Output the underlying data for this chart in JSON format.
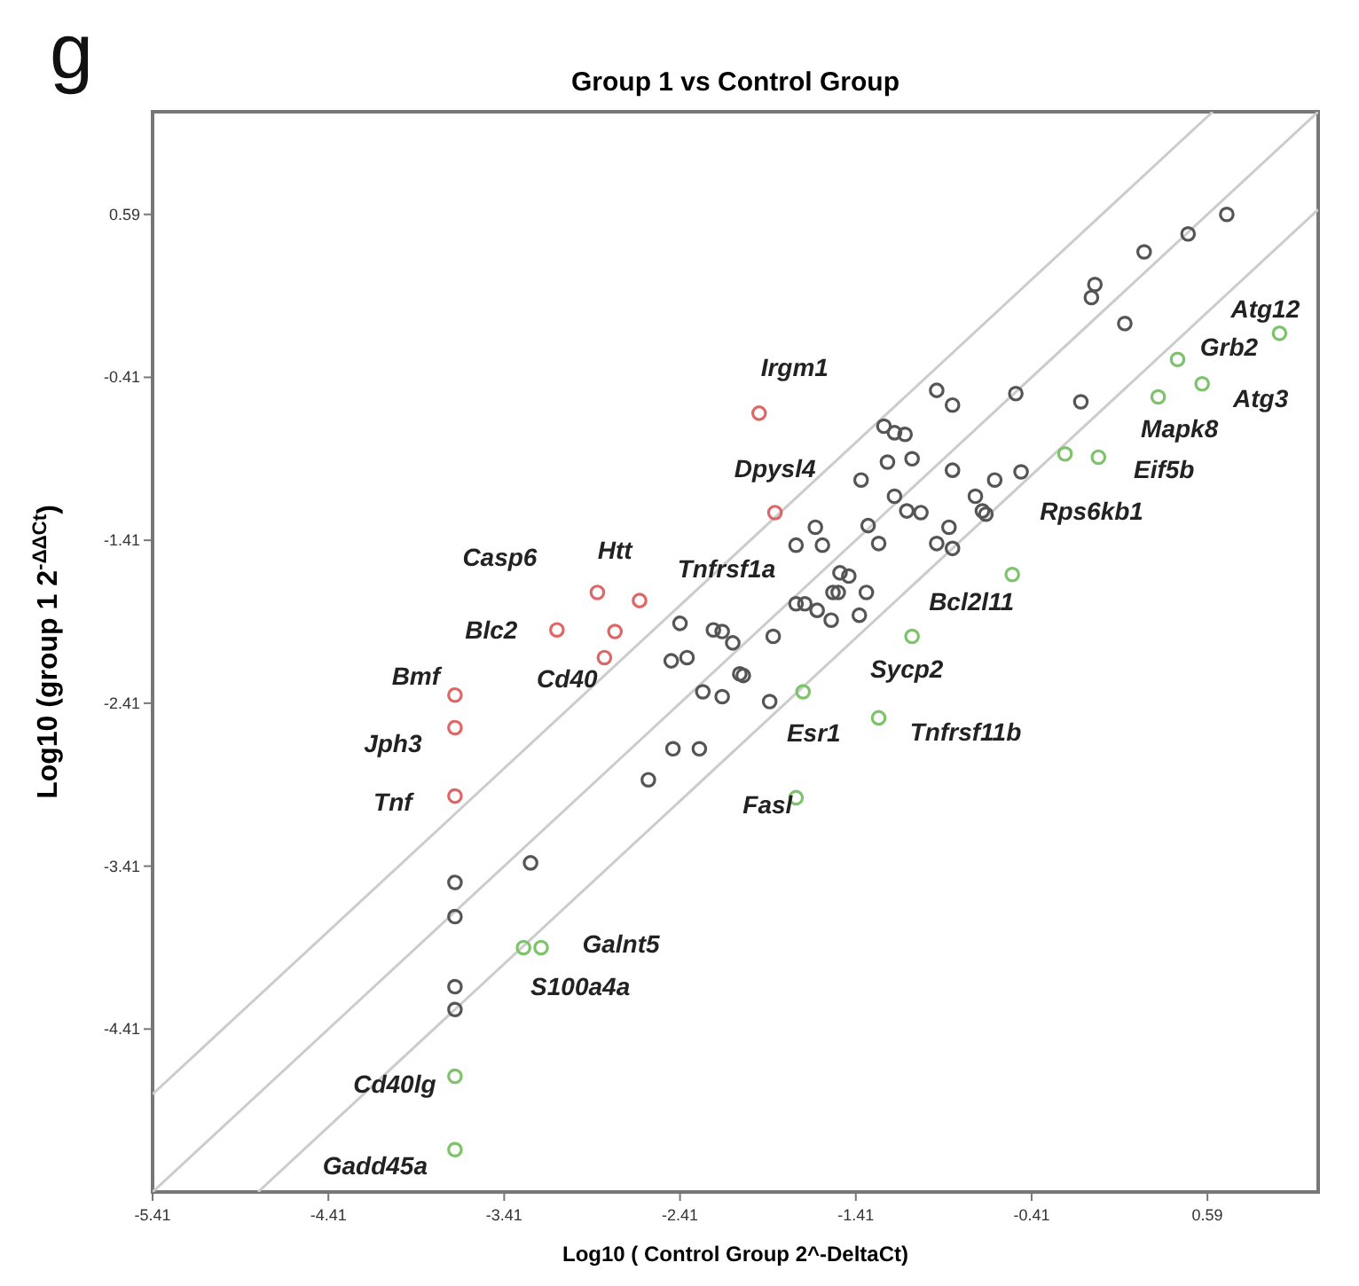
{
  "chart_data": {
    "type": "scatter",
    "title": "Group 1 vs Control Group",
    "xlabel": "Log10 ( Control Group 2^-DeltaCt)",
    "ylabel": "Log10 (group 1 2$^{-ΔΔCt}$)",
    "xlim": [
      -5.41,
      1.22
    ],
    "ylim": [
      -5.41,
      1.22
    ],
    "xticks": [
      -5.41,
      -4.41,
      -3.41,
      -2.41,
      -1.41,
      -0.41,
      0.59
    ],
    "yticks": [
      -4.41,
      -3.41,
      -2.41,
      -1.41,
      -0.41,
      0.59
    ],
    "grid": false,
    "marker": "circle",
    "series": [
      {
        "type": "line",
        "marker": "none",
        "color": "#cccccc",
        "x": [
          -5.41,
          1.22
        ],
        "values": [
          -5.41,
          1.22
        ]
      },
      {
        "type": "line",
        "marker": "none",
        "color": "#cccccc",
        "x": [
          -5.41,
          0.62
        ],
        "values": [
          -4.81,
          1.22
        ]
      },
      {
        "type": "line",
        "marker": "none",
        "color": "#cccccc",
        "x": [
          -4.81,
          1.22
        ],
        "values": [
          -5.41,
          0.62
        ]
      },
      {
        "color": "#555555",
        "x": [
          -3.69,
          -3.69,
          -3.69,
          -3.69,
          -3.26,
          -2.59,
          -2.45,
          -2.3,
          -2.41,
          -2.46,
          -2.37,
          -2.22,
          -2.17,
          -2.11,
          -2.07,
          -2.28,
          -2.17,
          0.7,
          0.48,
          0.23,
          -0.05,
          -0.07,
          0.12,
          -0.95,
          -0.86,
          -0.5,
          -0.13,
          -1.25,
          -1.19,
          -1.13,
          -1.23,
          -1.09,
          -1.38,
          -0.86,
          -0.62,
          -0.47,
          -0.73,
          -1.19,
          -1.12,
          -1.04,
          -0.69,
          -0.67,
          -1.64,
          -1.75,
          -1.6,
          -1.34,
          -1.28,
          -0.88,
          -0.95,
          -0.86,
          -1.5,
          -1.45,
          -1.54,
          -1.51,
          -1.35,
          -1.75,
          -1.7,
          -1.63,
          -1.55,
          -1.39,
          -1.88,
          -2.05,
          -1.9
        ],
        "values": [
          -3.51,
          -3.72,
          -4.15,
          -4.29,
          -3.39,
          -2.88,
          -2.69,
          -2.69,
          -1.92,
          -2.15,
          -2.13,
          -1.96,
          -1.97,
          -2.04,
          -2.23,
          -2.34,
          -2.37,
          0.59,
          0.47,
          0.36,
          0.16,
          0.08,
          -0.08,
          -0.49,
          -0.58,
          -0.51,
          -0.56,
          -0.71,
          -0.75,
          -0.76,
          -0.93,
          -0.91,
          -1.04,
          -0.98,
          -1.04,
          -0.99,
          -1.14,
          -1.14,
          -1.23,
          -1.24,
          -1.23,
          -1.25,
          -1.33,
          -1.44,
          -1.44,
          -1.32,
          -1.43,
          -1.33,
          -1.43,
          -1.46,
          -1.61,
          -1.63,
          -1.73,
          -1.73,
          -1.73,
          -1.8,
          -1.8,
          -1.84,
          -1.9,
          -1.87,
          -2.0,
          -2.24,
          -2.4
        ]
      },
      {
        "color": "#e06666",
        "x": [
          -1.96,
          -1.87,
          -2.88,
          -2.64,
          -3.11,
          -2.78,
          -2.84,
          -3.69,
          -3.69,
          -3.69
        ],
        "values": [
          -0.63,
          -1.24,
          -1.73,
          -1.78,
          -1.96,
          -1.97,
          -2.13,
          -2.36,
          -2.56,
          -2.98
        ]
      },
      {
        "color": "#7cc36a",
        "x": [
          1.0,
          0.42,
          0.56,
          0.31,
          -0.03,
          -0.22,
          -0.52,
          -1.09,
          -1.71,
          -1.28,
          -1.75,
          -3.3,
          -3.2,
          -3.69,
          -3.69
        ],
        "values": [
          -0.14,
          -0.3,
          -0.45,
          -0.53,
          -0.9,
          -0.88,
          -1.62,
          -2.0,
          -2.34,
          -2.5,
          -2.99,
          -3.91,
          -3.91,
          -4.7,
          -5.15
        ]
      }
    ],
    "annotations": [
      "g",
      {
        "text": "Irgm1",
        "x": -1.96,
        "y": -0.63
      },
      {
        "text": "Dpysl4",
        "x": -1.87,
        "y": -1.24
      },
      {
        "text": "Htt",
        "x": -2.78,
        "y": -1.97
      },
      {
        "text": "Tnfrsf1a",
        "x": -2.64,
        "y": -1.78
      },
      {
        "text": "Blc2",
        "x": -3.11,
        "y": -1.96
      },
      {
        "text": "Casp6",
        "x": -2.88,
        "y": -1.73
      },
      {
        "text": "Cd40",
        "x": -2.84,
        "y": -2.13
      },
      {
        "text": "Bmf",
        "x": -3.69,
        "y": -2.36
      },
      {
        "text": "Jph3",
        "x": -3.69,
        "y": -2.56
      },
      {
        "text": "Tnf",
        "x": -3.69,
        "y": -2.98
      },
      {
        "text": "Atg12",
        "x": 1.0,
        "y": -0.14
      },
      {
        "text": "Grb2",
        "x": 0.42,
        "y": -0.3
      },
      {
        "text": "Atg3",
        "x": 0.56,
        "y": -0.45
      },
      {
        "text": "Mapk8",
        "x": 0.31,
        "y": -0.53
      },
      {
        "text": "Eif5b",
        "x": -0.03,
        "y": -0.9
      },
      {
        "text": "Rps6kb1",
        "x": -0.22,
        "y": -0.88
      },
      {
        "text": "Bcl2l11",
        "x": -0.52,
        "y": -1.62
      },
      {
        "text": "Sycp2",
        "x": -1.09,
        "y": -2.0
      },
      {
        "text": "Esr1",
        "x": -1.71,
        "y": -2.34
      },
      {
        "text": "Tnfrsf11b",
        "x": -1.28,
        "y": -2.5
      },
      {
        "text": "Fasl",
        "x": -1.75,
        "y": -2.99
      },
      {
        "text": "S100a4a",
        "x": -3.3,
        "y": -3.91
      },
      {
        "text": "Galnt5",
        "x": -3.2,
        "y": -3.91
      },
      {
        "text": "Cd40lg",
        "x": -3.69,
        "y": -4.7
      },
      {
        "text": "Gadd45a",
        "x": -3.69,
        "y": -5.15
      }
    ]
  }
}
